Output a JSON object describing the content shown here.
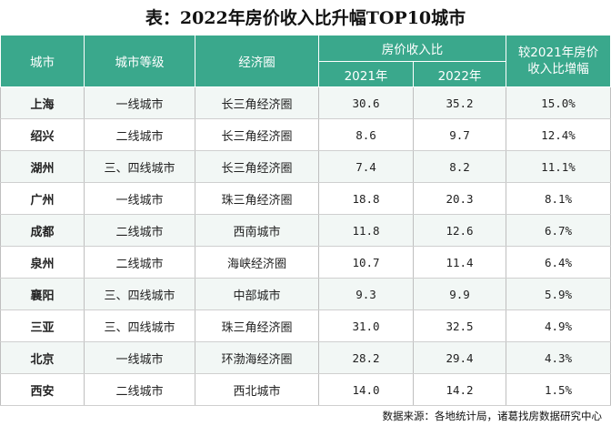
{
  "title": "表：2022年房价收入比升幅TOP10城市",
  "headers": {
    "city": "城市",
    "tier": "城市等级",
    "region": "经济圈",
    "ratio_group": "房价收入比",
    "y2021": "2021年",
    "y2022": "2022年",
    "increase": "较2021年房价收入比增幅"
  },
  "rows": [
    {
      "city": "上海",
      "tier": "一线城市",
      "region": "长三角经济圈",
      "y2021": "30.6",
      "y2022": "35.2",
      "increase": "15.0%"
    },
    {
      "city": "绍兴",
      "tier": "二线城市",
      "region": "长三角经济圈",
      "y2021": "8.6",
      "y2022": "9.7",
      "increase": "12.4%"
    },
    {
      "city": "湖州",
      "tier": "三、四线城市",
      "region": "长三角经济圈",
      "y2021": "7.4",
      "y2022": "8.2",
      "increase": "11.1%"
    },
    {
      "city": "广州",
      "tier": "一线城市",
      "region": "珠三角经济圈",
      "y2021": "18.8",
      "y2022": "20.3",
      "increase": "8.1%"
    },
    {
      "city": "成都",
      "tier": "二线城市",
      "region": "西南城市",
      "y2021": "11.8",
      "y2022": "12.6",
      "increase": "6.7%"
    },
    {
      "city": "泉州",
      "tier": "二线城市",
      "region": "海峡经济圈",
      "y2021": "10.7",
      "y2022": "11.4",
      "increase": "6.4%"
    },
    {
      "city": "襄阳",
      "tier": "三、四线城市",
      "region": "中部城市",
      "y2021": "9.3",
      "y2022": "9.9",
      "increase": "5.9%"
    },
    {
      "city": "三亚",
      "tier": "三、四线城市",
      "region": "珠三角经济圈",
      "y2021": "31.0",
      "y2022": "32.5",
      "increase": "4.9%"
    },
    {
      "city": "北京",
      "tier": "一线城市",
      "region": "环渤海经济圈",
      "y2021": "28.2",
      "y2022": "29.4",
      "increase": "4.3%"
    },
    {
      "city": "西安",
      "tier": "二线城市",
      "region": "西北城市",
      "y2021": "14.0",
      "y2022": "14.2",
      "increase": "1.5%"
    }
  ],
  "source": "数据来源：各地统计局，诸葛找房数据研究中心"
}
